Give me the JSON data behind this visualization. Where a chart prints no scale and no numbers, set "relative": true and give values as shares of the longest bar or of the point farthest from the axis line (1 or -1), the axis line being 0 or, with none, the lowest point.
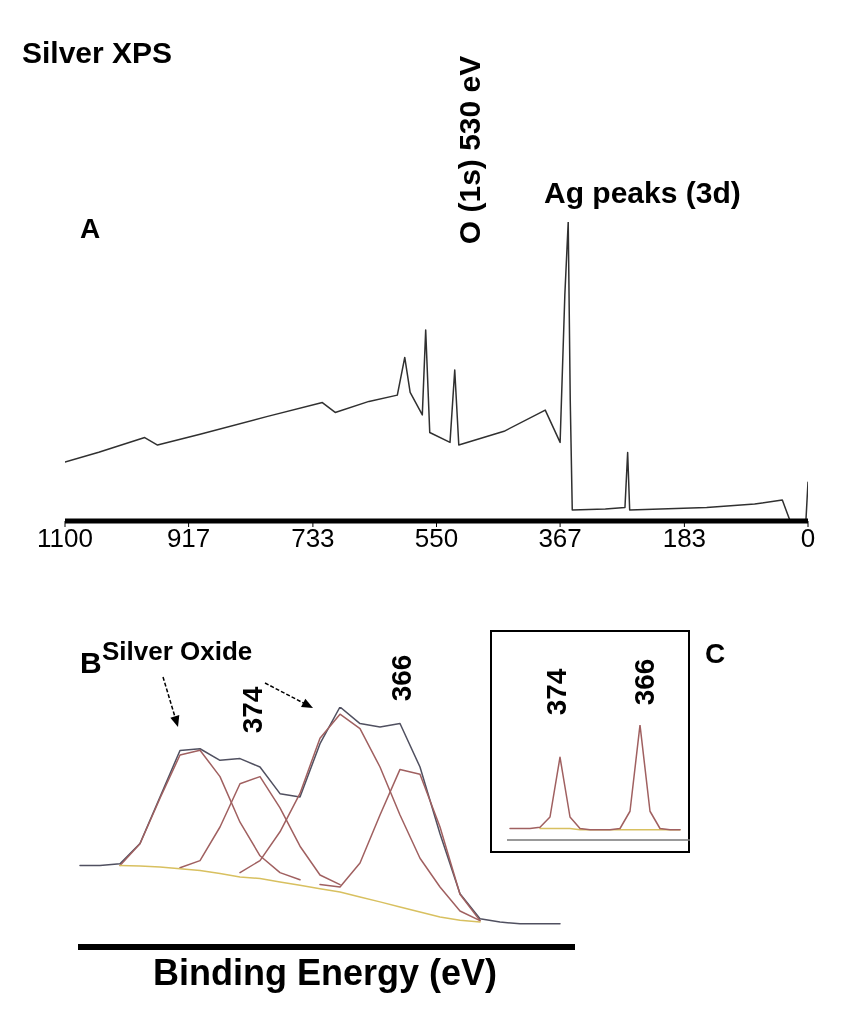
{
  "chart_data": [
    {
      "type": "line",
      "title": "Silver XPS",
      "annotations": [
        "A",
        "O (1s) 530 eV",
        "Ag peaks (3d)"
      ],
      "relative": true,
      "xlim": [
        1100,
        0
      ],
      "xticks": [
        1100,
        917,
        733,
        550,
        367,
        183,
        0
      ],
      "x": [
        1100,
        1050,
        982,
        963,
        900,
        800,
        719,
        700,
        650,
        608,
        597,
        589,
        571,
        566,
        560,
        530,
        523,
        517,
        450,
        389,
        367,
        360,
        355,
        352,
        349,
        300,
        271,
        267,
        264,
        150,
        79,
        38,
        27,
        3,
        0
      ],
      "series": [
        {
          "color": "#303030",
          "values": [
            0.197,
            0.23,
            0.279,
            0.254,
            0.29,
            0.35,
            0.396,
            0.363,
            0.4,
            0.421,
            0.547,
            0.43,
            0.355,
            0.639,
            0.296,
            0.263,
            0.505,
            0.254,
            0.3,
            0.371,
            0.263,
            0.756,
            1,
            0.405,
            0.037,
            0.04,
            0.045,
            0.229,
            0.037,
            0.045,
            0.057,
            0.07,
            0.003,
            0.005,
            0.13
          ]
        }
      ]
    },
    {
      "type": "line",
      "xlabel": "Binding Energy (eV)",
      "annotations": [
        "B",
        "Silver Oxide",
        "374",
        "366"
      ],
      "relative": true,
      "categories": [
        null,
        null,
        null,
        null,
        null,
        null,
        null,
        null,
        null,
        null,
        null,
        null,
        null,
        null,
        null,
        null,
        null,
        null,
        null,
        null,
        null,
        null,
        null,
        null,
        null
      ],
      "series": [
        {
          "color": "#505060",
          "values": [
            0.34,
            0.34,
            0.347,
            0.431,
            0.625,
            0.819,
            0.826,
            0.778,
            0.785,
            0.75,
            0.639,
            0.625,
            0.847,
            1,
            0.931,
            0.917,
            0.931,
            0.75,
            0.472,
            0.222,
            0.118,
            0.104,
            0.097,
            0.097,
            0.097
          ]
        },
        {
          "color": "#a06060",
          "values": [
            null,
            null,
            0.34,
            0.43,
            0.62,
            0.8,
            0.82,
            0.71,
            0.52,
            0.38,
            0.31,
            0.28,
            null,
            null,
            null,
            null,
            null,
            null,
            null,
            null,
            null,
            null,
            null,
            null,
            null
          ]
        },
        {
          "color": "#a06060",
          "values": [
            null,
            null,
            null,
            null,
            null,
            0.33,
            0.36,
            0.5,
            0.68,
            0.71,
            0.58,
            0.42,
            0.3,
            0.26,
            null,
            null,
            null,
            null,
            null,
            null,
            null,
            null,
            null,
            null,
            null
          ]
        },
        {
          "color": "#a06060",
          "values": [
            null,
            null,
            null,
            null,
            null,
            null,
            null,
            null,
            0.31,
            0.36,
            0.48,
            0.64,
            0.87,
            0.97,
            0.91,
            0.75,
            0.55,
            0.37,
            0.25,
            0.15,
            0.11,
            null,
            null,
            null,
            null
          ]
        },
        {
          "color": "#a06060",
          "values": [
            null,
            null,
            null,
            null,
            null,
            null,
            null,
            null,
            null,
            null,
            null,
            null,
            0.26,
            0.25,
            0.35,
            0.55,
            0.74,
            0.72,
            0.5,
            0.22,
            0.11,
            null,
            null,
            null,
            null
          ]
        },
        {
          "color": "#d8c060",
          "values": [
            null,
            null,
            0.34,
            0.337,
            0.333,
            0.326,
            0.319,
            0.306,
            0.292,
            0.285,
            0.271,
            0.257,
            0.243,
            0.229,
            0.208,
            0.188,
            0.167,
            0.146,
            0.125,
            0.111,
            0.104,
            null,
            null,
            null,
            null
          ]
        }
      ]
    },
    {
      "type": "line",
      "annotations": [
        "374",
        "366",
        "C"
      ],
      "relative": true,
      "categories": [
        null,
        null,
        null,
        null,
        null,
        null,
        null,
        null,
        null,
        null,
        null,
        null,
        null,
        null,
        null,
        null,
        null,
        null
      ],
      "series": [
        {
          "color": "#d8c060",
          "values": [
            null,
            null,
            null,
            0.1,
            0.1,
            0.1,
            0.1,
            0.09,
            0.09,
            0.09,
            0.09,
            0.09,
            0.09,
            0.09,
            0.09,
            0.09,
            0.09,
            0.09
          ]
        },
        {
          "color": "#a06060",
          "values": [
            0.1,
            0.1,
            0.1,
            0.11,
            0.2,
            0.72,
            0.2,
            0.1,
            0.09,
            0.09,
            0.09,
            0.1,
            0.25,
            1,
            0.25,
            0.1,
            0.09,
            0.09
          ]
        }
      ]
    }
  ]
}
